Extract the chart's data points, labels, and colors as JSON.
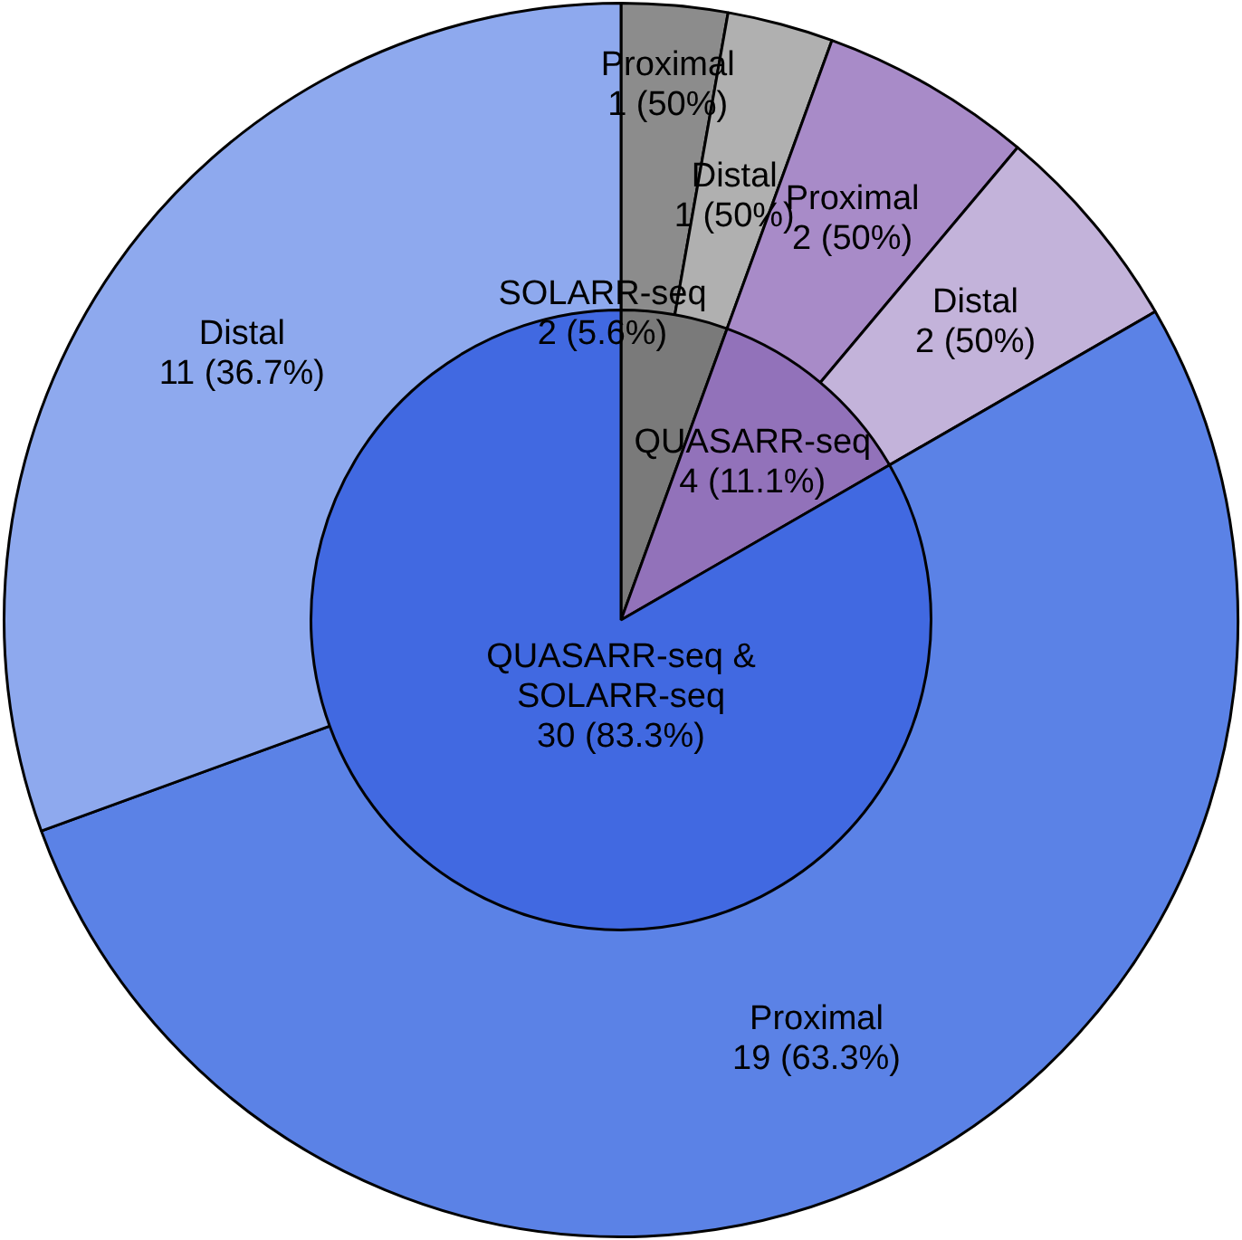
{
  "chart_data": [
    {
      "type": "pie",
      "legend": false,
      "categories": [
        "SOLARR-seq",
        "QUASARR-seq",
        "QUASARR-seq & SOLARR-seq"
      ],
      "values": [
        2,
        4,
        30
      ],
      "colors": [
        "#7a7a7a",
        "#9272ba",
        "#4169e1"
      ],
      "value_labels": [
        "2 (5.6%)",
        "4 (11.1%)",
        "30 (83.3%)"
      ]
    },
    {
      "type": "donut",
      "legend": false,
      "categories": [
        "Proximal",
        "Distal",
        "Proximal",
        "Distal",
        "Proximal",
        "Distal"
      ],
      "values": [
        1,
        1,
        2,
        2,
        19,
        11
      ],
      "colors": [
        "#8c8c8c",
        "#b0b0b0",
        "#a88bc8",
        "#c3b3da",
        "#5b82e6",
        "#8ea9ee"
      ],
      "value_labels": [
        "1 (50%)",
        "1 (50%)",
        "2 (50%)",
        "2 (50%)",
        "19 (63.3%)",
        "11 (36.7%)"
      ]
    }
  ]
}
